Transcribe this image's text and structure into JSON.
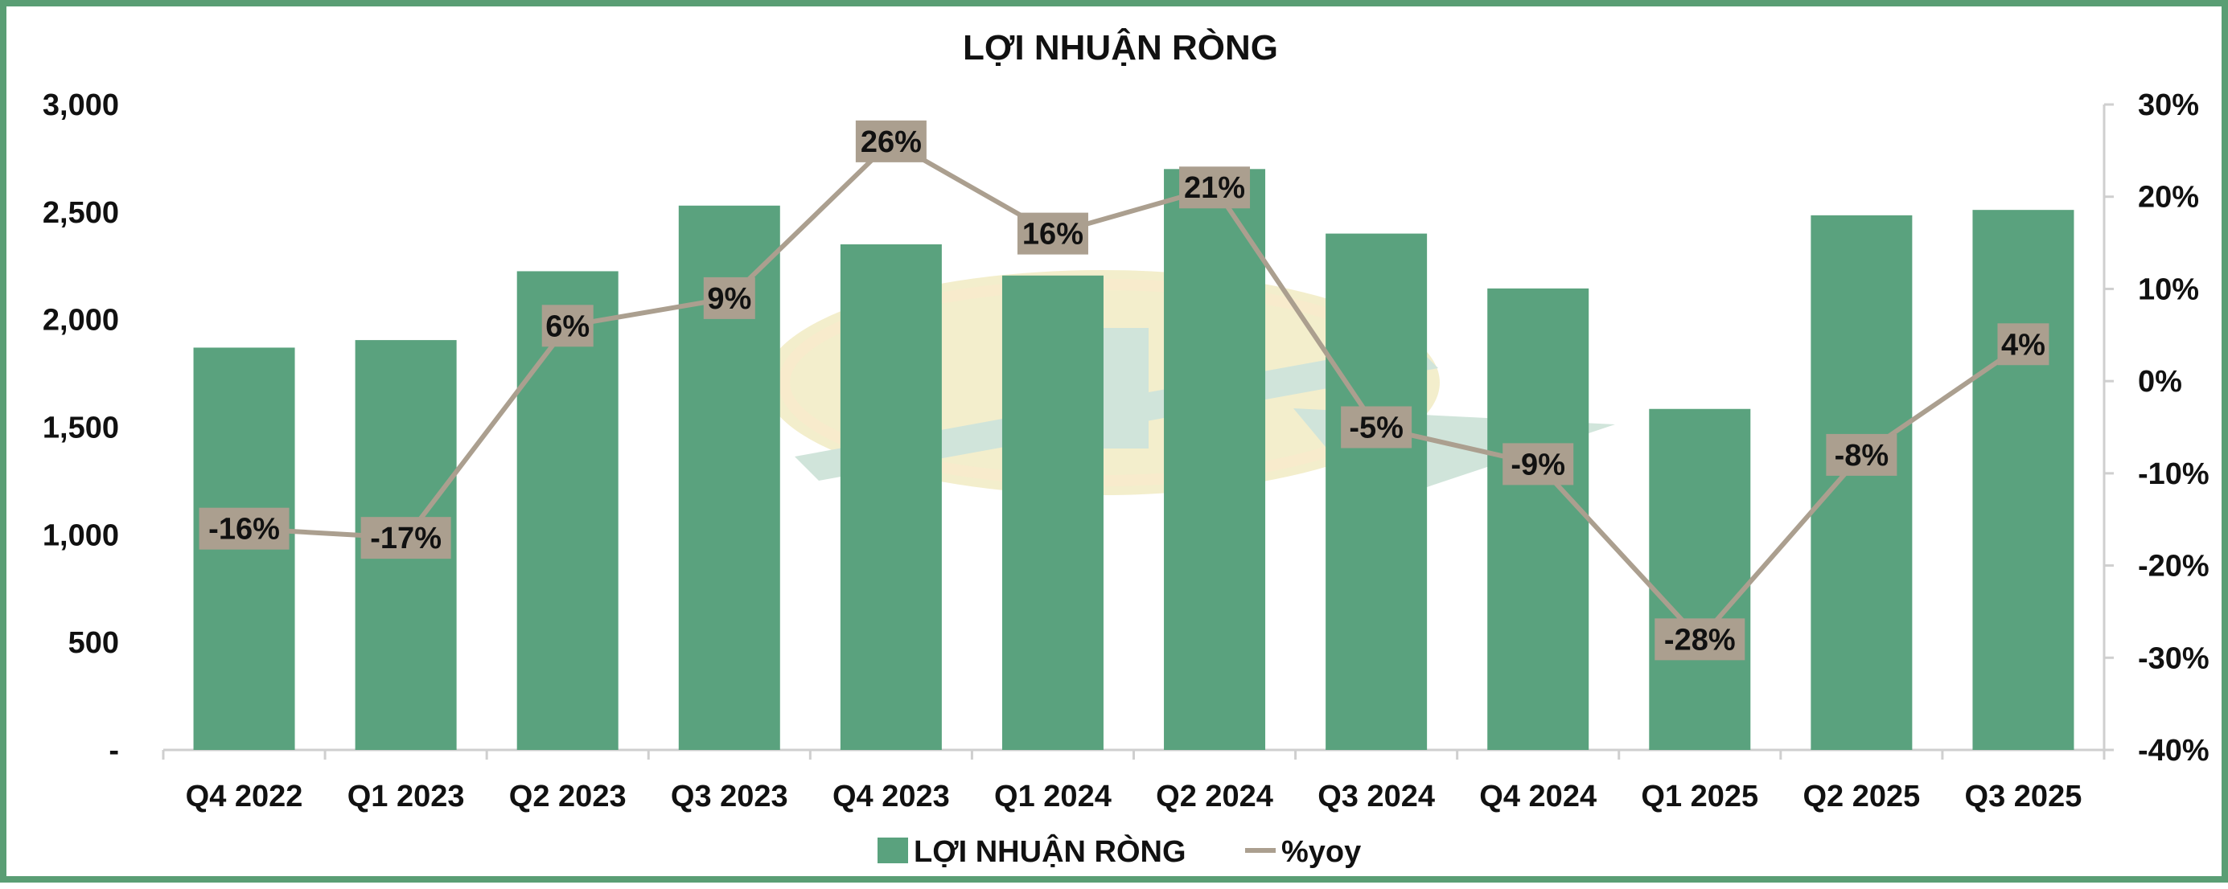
{
  "chart_data": {
    "type": "bar+line",
    "title": "LỢI NHUẬN RÒNG",
    "categories": [
      "Q4 2022",
      "Q1 2023",
      "Q2 2023",
      "Q3 2023",
      "Q4 2023",
      "Q1 2024",
      "Q2 2024",
      "Q3 2024",
      "Q4 2024",
      "Q1 2025",
      "Q2 2025",
      "Q3 2025"
    ],
    "series": [
      {
        "name": "LỢI NHUẬN RÒNG",
        "type": "bar",
        "axis": "left",
        "color": "#5aa27e",
        "values": [
          1870,
          1905,
          2225,
          2530,
          2350,
          2205,
          2700,
          2400,
          2145,
          1585,
          2485,
          2510
        ]
      },
      {
        "name": "%yoy",
        "type": "line",
        "axis": "right",
        "color": "#ab9f8f",
        "values": [
          -16,
          -17,
          6,
          9,
          26,
          16,
          21,
          -5,
          -9,
          -28,
          -8,
          4
        ],
        "labels": [
          "-16%",
          "-17%",
          "6%",
          "9%",
          "26%",
          "16%",
          "21%",
          "-5%",
          "-9%",
          "-28%",
          "-8%",
          "4%"
        ]
      }
    ],
    "y_left": {
      "lim": [
        0,
        3000
      ],
      "ticks": [
        0,
        500,
        1000,
        1500,
        2000,
        2500,
        3000
      ],
      "tick_labels": [
        "-",
        "500",
        "1,000",
        "1,500",
        "2,000",
        "2,500",
        "3,000"
      ]
    },
    "y_right": {
      "lim": [
        -40,
        30
      ],
      "ticks": [
        -40,
        -30,
        -20,
        -10,
        0,
        10,
        20,
        30
      ],
      "tick_labels": [
        "-40%",
        "-30%",
        "-20%",
        "-10%",
        "0%",
        "10%",
        "20%",
        "30%"
      ]
    },
    "grid": false,
    "legend": "bottom-center"
  },
  "colors": {
    "frame": "#5a9e74",
    "bar": "#5aa27e",
    "line": "#ab9f8f",
    "label_box": "#ab9f8f"
  }
}
